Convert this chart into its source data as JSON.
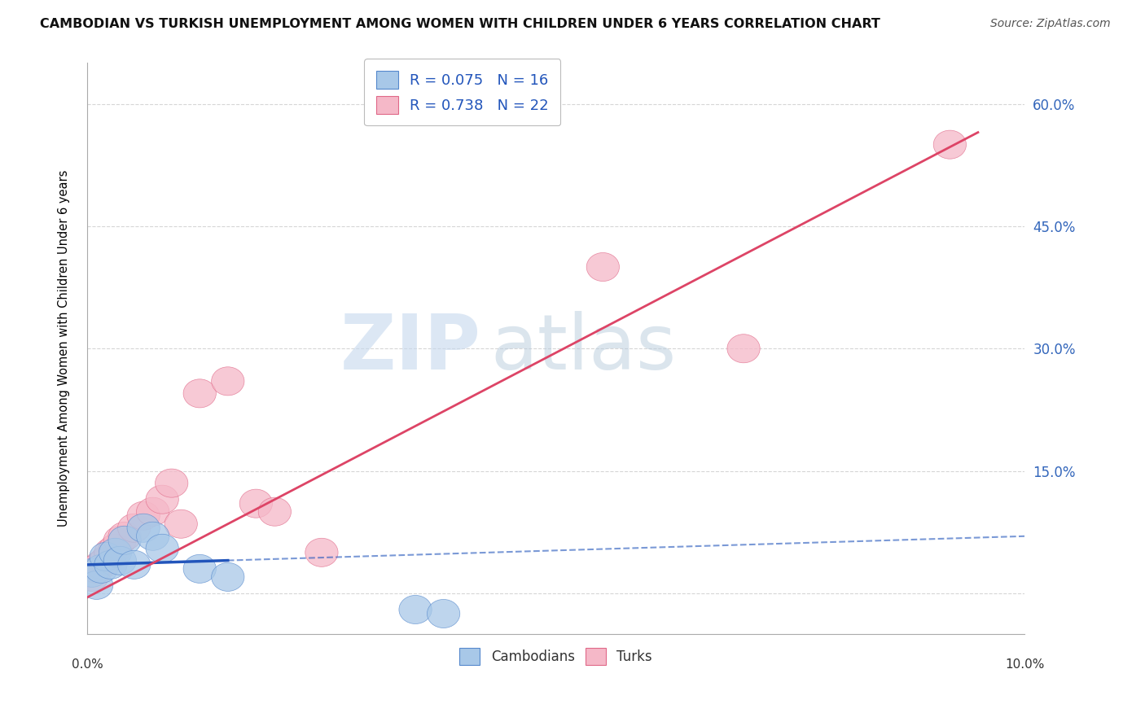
{
  "title": "CAMBODIAN VS TURKISH UNEMPLOYMENT AMONG WOMEN WITH CHILDREN UNDER 6 YEARS CORRELATION CHART",
  "source": "Source: ZipAtlas.com",
  "ylabel": "Unemployment Among Women with Children Under 6 years",
  "xlim": [
    0.0,
    10.0
  ],
  "ylim": [
    -5.0,
    65.0
  ],
  "yticks": [
    0.0,
    15.0,
    30.0,
    45.0,
    60.0
  ],
  "ytick_labels": [
    "",
    "15.0%",
    "30.0%",
    "45.0%",
    "60.0%"
  ],
  "cambodian_color": "#A8C8E8",
  "turk_color": "#F5B8C8",
  "cambodian_edge_color": "#5588CC",
  "turk_edge_color": "#E06888",
  "cambodian_line_color": "#2255BB",
  "turk_line_color": "#DD4466",
  "legend_cambodian": "R = 0.075   N = 16",
  "legend_turk": "R = 0.738   N = 22",
  "background_color": "#FFFFFF",
  "grid_color": "#CCCCCC",
  "watermark_zip": "ZIP",
  "watermark_atlas": "atlas",
  "cambodian_x": [
    0.05,
    0.1,
    0.15,
    0.2,
    0.25,
    0.3,
    0.35,
    0.4,
    0.5,
    0.6,
    0.7,
    0.8,
    1.2,
    1.5,
    3.5,
    3.8
  ],
  "cambodian_y": [
    2.5,
    1.0,
    3.0,
    4.5,
    3.5,
    5.0,
    4.0,
    6.5,
    3.5,
    8.0,
    7.0,
    5.5,
    3.0,
    2.0,
    -2.0,
    -2.5
  ],
  "turk_x": [
    0.05,
    0.1,
    0.15,
    0.2,
    0.25,
    0.3,
    0.35,
    0.4,
    0.5,
    0.6,
    0.7,
    0.8,
    0.9,
    1.0,
    1.2,
    1.5,
    1.8,
    2.0,
    2.5,
    5.5,
    7.0,
    9.2
  ],
  "turk_y": [
    2.0,
    3.0,
    3.5,
    4.0,
    5.0,
    5.5,
    6.5,
    7.0,
    8.0,
    9.5,
    10.0,
    11.5,
    13.5,
    8.5,
    24.5,
    26.0,
    11.0,
    10.0,
    5.0,
    40.0,
    30.0,
    55.0
  ],
  "cam_regression_slope": 0.35,
  "cam_regression_intercept": 3.5,
  "turk_regression_slope": 6.0,
  "turk_regression_intercept": -0.5
}
